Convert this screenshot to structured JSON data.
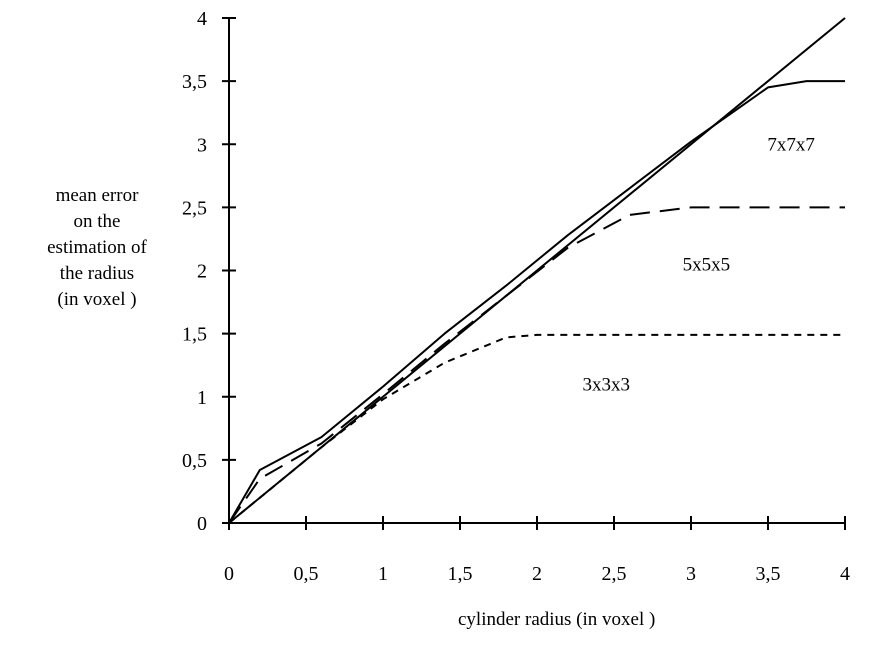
{
  "chart_data": {
    "type": "line",
    "xlabel": "cylinder radius (in voxel )",
    "ylabel_lines": [
      "mean error",
      "on the",
      "estimation of",
      "the radius",
      "(in voxel )"
    ],
    "xlim": [
      0,
      4
    ],
    "ylim": [
      0,
      4
    ],
    "x_ticks": [
      {
        "v": 0,
        "label": "0"
      },
      {
        "v": 0.5,
        "label": "0,5"
      },
      {
        "v": 1,
        "label": "1"
      },
      {
        "v": 1.5,
        "label": "1,5"
      },
      {
        "v": 2,
        "label": "2"
      },
      {
        "v": 2.5,
        "label": "2,5"
      },
      {
        "v": 3,
        "label": "3"
      },
      {
        "v": 3.5,
        "label": "3,5"
      },
      {
        "v": 4,
        "label": "4"
      }
    ],
    "y_ticks": [
      {
        "v": 0,
        "label": "0"
      },
      {
        "v": 0.5,
        "label": "0,5"
      },
      {
        "v": 1,
        "label": "1"
      },
      {
        "v": 1.5,
        "label": "1,5"
      },
      {
        "v": 2,
        "label": "2"
      },
      {
        "v": 2.5,
        "label": "2,5"
      },
      {
        "v": 3,
        "label": "3"
      },
      {
        "v": 3.5,
        "label": "3,5"
      },
      {
        "v": 4,
        "label": "4"
      }
    ],
    "grid": false,
    "legend": "none",
    "series": [
      {
        "dash": "solid",
        "points": [
          [
            0,
            0
          ],
          [
            4,
            4
          ]
        ]
      },
      {
        "dash": "solid",
        "points": [
          [
            0,
            0
          ],
          [
            0.2,
            0.42
          ],
          [
            0.6,
            0.68
          ],
          [
            1,
            1.08
          ],
          [
            1.4,
            1.5
          ],
          [
            1.8,
            1.88
          ],
          [
            2.2,
            2.28
          ],
          [
            2.6,
            2.65
          ],
          [
            3,
            3.02
          ],
          [
            3.5,
            3.45
          ],
          [
            3.75,
            3.5
          ],
          [
            4,
            3.5
          ]
        ]
      },
      {
        "dash": "long",
        "points": [
          [
            0,
            0
          ],
          [
            0.2,
            0.35
          ],
          [
            0.6,
            0.63
          ],
          [
            1,
            1.02
          ],
          [
            1.4,
            1.42
          ],
          [
            1.8,
            1.8
          ],
          [
            2.2,
            2.18
          ],
          [
            2.6,
            2.44
          ],
          [
            3,
            2.5
          ],
          [
            4,
            2.5
          ]
        ]
      },
      {
        "dash": "short",
        "points": [
          [
            0,
            0
          ],
          [
            0.2,
            0.2
          ],
          [
            0.6,
            0.6
          ],
          [
            1,
            0.98
          ],
          [
            1.4,
            1.27
          ],
          [
            1.8,
            1.47
          ],
          [
            2,
            1.49
          ],
          [
            4,
            1.49
          ]
        ]
      }
    ],
    "annotations": [
      {
        "text": "7x7x7",
        "x": 3.65,
        "y": 2.95
      },
      {
        "text": "5x5x5",
        "x": 3.1,
        "y": 2.0
      },
      {
        "text": "3x3x3",
        "x": 2.45,
        "y": 1.05
      }
    ]
  }
}
